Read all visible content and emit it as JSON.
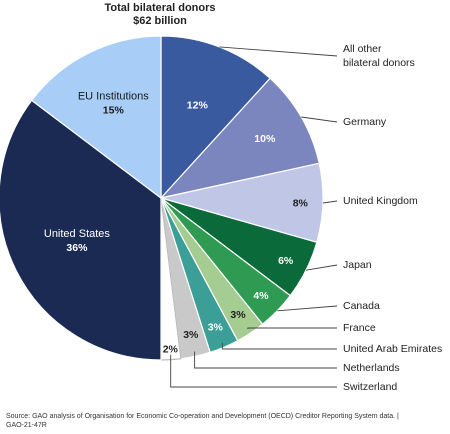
{
  "chart_data": {
    "type": "pie",
    "title": "Total bilateral donors",
    "subtitle": "$62 billion",
    "start_angle_deg": 0,
    "direction": "clockwise",
    "slices": [
      {
        "name": "All other bilateral donors",
        "legend_lines": [
          "All other",
          "bilateral donors"
        ],
        "value": 12,
        "label": "12%",
        "color": "#3a5aa0",
        "label_color": "#ffffff"
      },
      {
        "name": "Germany",
        "legend_lines": [
          "Germany"
        ],
        "value": 10,
        "label": "10%",
        "color": "#7b86bf",
        "label_color": "#ffffff"
      },
      {
        "name": "United Kingdom",
        "legend_lines": [
          "United Kingdom"
        ],
        "value": 8,
        "label": "8%",
        "color": "#c0c6e6",
        "label_color": "#222222"
      },
      {
        "name": "Japan",
        "legend_lines": [
          "Japan"
        ],
        "value": 6,
        "label": "6%",
        "color": "#0b6a3a",
        "label_color": "#ffffff"
      },
      {
        "name": "Canada",
        "legend_lines": [
          "Canada"
        ],
        "value": 4,
        "label": "4%",
        "color": "#2f9a52",
        "label_color": "#ffffff"
      },
      {
        "name": "France",
        "legend_lines": [
          "France"
        ],
        "value": 3,
        "label": "3%",
        "color": "#a5cc91",
        "label_color": "#222222"
      },
      {
        "name": "United Arab Emirates",
        "legend_lines": [
          "United Arab Emirates"
        ],
        "value": 3,
        "label": "3%",
        "color": "#3c9f97",
        "label_color": "#ffffff"
      },
      {
        "name": "Netherlands",
        "legend_lines": [
          "Netherlands"
        ],
        "value": 3,
        "label": "3%",
        "color": "#c9c9c9",
        "label_color": "#222222"
      },
      {
        "name": "Switzerland",
        "legend_lines": [
          "Switzerland"
        ],
        "value": 2,
        "label": "2%",
        "color": "#ffffff",
        "label_color": "#222222"
      },
      {
        "name": "United States",
        "legend_lines": [],
        "inner_lines": [
          "United States",
          "36%"
        ],
        "value": 36,
        "label": "36%",
        "color": "#1a2a52",
        "label_color": "#ffffff"
      },
      {
        "name": "EU Institutions",
        "legend_lines": [],
        "inner_lines": [
          "EU Institutions",
          "15%"
        ],
        "value": 15,
        "label": "15%",
        "color": "#a8cdf7",
        "label_color": "#1a1a1a"
      }
    ]
  },
  "source_text": "Source: GAO analysis of Organisation for Economic Co-operation and Development (OECD) Creditor Reporting System data.  |  GAO-21-47R"
}
